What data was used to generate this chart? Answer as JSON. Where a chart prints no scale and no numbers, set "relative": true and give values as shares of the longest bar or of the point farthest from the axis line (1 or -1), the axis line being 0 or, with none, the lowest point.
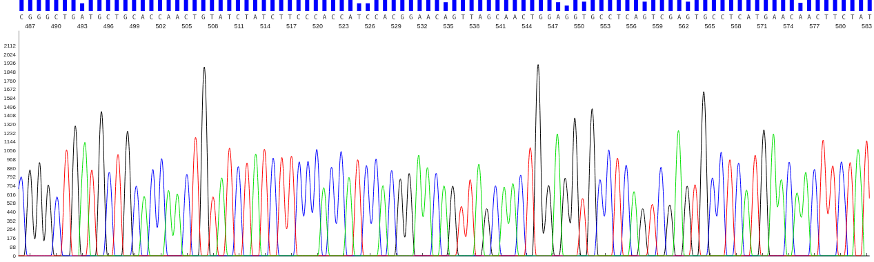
{
  "chart_data": [
    {
      "type": "bar",
      "relative": true,
      "color": "#0000ff",
      "categories": [
        "C",
        "G",
        "G",
        "G",
        "C",
        "T",
        "G",
        "A",
        "T",
        "G",
        "C",
        "T",
        "G",
        "C",
        "A",
        "C",
        "C",
        "A",
        "A",
        "C",
        "T",
        "G",
        "T",
        "A",
        "T",
        "C",
        "T",
        "A",
        "T",
        "C",
        "T",
        "T",
        "C",
        "C",
        "C",
        "A",
        "C",
        "C",
        "A",
        "T",
        "C",
        "C",
        "A",
        "C",
        "G",
        "G",
        "A",
        "A",
        "C",
        "A",
        "G",
        "T",
        "T",
        "A",
        "G",
        "C",
        "A",
        "A",
        "C",
        "T",
        "G",
        "G",
        "A",
        "G",
        "G",
        "T",
        "G",
        "C",
        "C",
        "T",
        "C",
        "A",
        "G",
        "T",
        "C",
        "G",
        "A",
        "G",
        "T",
        "G",
        "C",
        "C",
        "T",
        "C",
        "A",
        "T",
        "G",
        "A",
        "A",
        "C",
        "A",
        "A",
        "C",
        "T",
        "T",
        "C",
        "T",
        "A",
        "T"
      ],
      "values": [
        1,
        1,
        1,
        1,
        1,
        1,
        1,
        0.7,
        1,
        1,
        1,
        1,
        1,
        1,
        1,
        1,
        1,
        1,
        1,
        1,
        1,
        1,
        1,
        1,
        1,
        1,
        1,
        1,
        1,
        1,
        1,
        1,
        1,
        1,
        1,
        1,
        1,
        1,
        1,
        0.7,
        0.7,
        1,
        1,
        1,
        1,
        1,
        1,
        1,
        1,
        0.8,
        1,
        1,
        1,
        1,
        1,
        1,
        1,
        1,
        1,
        1,
        1,
        1,
        0.8,
        0.5,
        1,
        0.85,
        1,
        1,
        1,
        1,
        1,
        1,
        0.85,
        1,
        1,
        1,
        1,
        0.85,
        1,
        1,
        1,
        1,
        1,
        1,
        1,
        1,
        1,
        1,
        1,
        1,
        0.75,
        1,
        1,
        1,
        1,
        1,
        1,
        1,
        1
      ]
    },
    {
      "type": "line",
      "xlim": [
        485.7,
        583.3
      ],
      "xticks": [
        487,
        490,
        493,
        496,
        499,
        502,
        505,
        508,
        511,
        514,
        517,
        520,
        523,
        526,
        529,
        532,
        535,
        538,
        541,
        544,
        547,
        550,
        553,
        556,
        559,
        562,
        565,
        568,
        571,
        574,
        577,
        580,
        583
      ],
      "ylim": [
        0,
        2260
      ],
      "yticks": [
        0,
        88,
        176,
        264,
        352,
        440,
        528,
        616,
        704,
        792,
        880,
        968,
        1056,
        1144,
        1232,
        1320,
        1408,
        1496,
        1584,
        1672,
        1760,
        1848,
        1936,
        2024,
        2112
      ],
      "grid": false,
      "marker": "none",
      "line_style": "solid",
      "series": [
        {
          "color": "#000000",
          "x": [
            485.7,
            486.3,
            487.0,
            487.55,
            488.1,
            488.6,
            489.1,
            489.8,
            491.5,
            492.2,
            492.9,
            494.5,
            495.2,
            495.9,
            497.5,
            498.2,
            498.9,
            506.3,
            507.0,
            507.7,
            528.8,
            529.5,
            530.0,
            530.5,
            531.2,
            534.8,
            535.5,
            536.2,
            538.7,
            539.4,
            540.1,
            544.6,
            545.3,
            545.9,
            546.5,
            547.2,
            547.7,
            548.4,
            549.0,
            549.5,
            550.2,
            550.8,
            551.5,
            552.2,
            556.6,
            557.3,
            558.0,
            559.7,
            560.4,
            561.1,
            561.7,
            562.4,
            563.1,
            563.6,
            564.3,
            565.0,
            570.5,
            571.2,
            571.9,
            583.3
          ],
          "values": [
            0,
            0,
            865,
            168,
            938,
            150,
            713,
            0,
            0,
            1306,
            0,
            0,
            1451,
            0,
            0,
            1253,
            0,
            0,
            1898,
            0,
            0,
            773,
            186,
            828,
            0,
            0,
            701,
            0,
            0,
            474,
            0,
            0,
            1923,
            225,
            708,
            0,
            0,
            782,
            329,
            1387,
            0,
            0,
            1479,
            0,
            0,
            474,
            0,
            0,
            513,
            0,
            0,
            701,
            0,
            0,
            1651,
            0,
            0,
            1267,
            0,
            0
          ]
        },
        {
          "color": "#0000ff",
          "x": [
            485.7,
            486.0,
            486.7,
            489.4,
            490.1,
            490.8,
            495.4,
            496.1,
            496.8,
            498.5,
            499.2,
            499.9,
            500.4,
            501.1,
            501.6,
            502.1,
            502.8,
            504.3,
            505.0,
            505.7,
            510.2,
            510.9,
            511.6,
            514.2,
            514.9,
            515.6,
            517.2,
            517.9,
            518.4,
            518.9,
            519.4,
            519.9,
            520.6,
            520.9,
            521.6,
            522.15,
            522.7,
            523.4,
            524.9,
            525.6,
            526.15,
            526.7,
            527.4,
            527.8,
            528.5,
            529.2,
            532.9,
            533.6,
            534.3,
            539.7,
            540.4,
            541.1,
            542.6,
            543.3,
            544.0,
            551.7,
            552.4,
            552.9,
            553.4,
            554.1,
            554.7,
            555.4,
            556.1,
            558.7,
            559.4,
            560.1,
            564.6,
            565.3,
            565.8,
            566.3,
            567.0,
            567.6,
            568.3,
            569.0,
            573.4,
            574.1,
            574.8,
            576.3,
            577.0,
            577.7,
            579.4,
            580.1,
            580.8
          ],
          "values": [
            674,
            794,
            0,
            0,
            593,
            0,
            0,
            840,
            0,
            0,
            701,
            0,
            0,
            869,
            283,
            978,
            0,
            0,
            819,
            0,
            0,
            897,
            0,
            0,
            984,
            0,
            0,
            945,
            398,
            950,
            432,
            1070,
            0,
            0,
            892,
            322,
            1049,
            0,
            0,
            908,
            322,
            973,
            0,
            0,
            858,
            0,
            0,
            830,
            0,
            0,
            704,
            0,
            0,
            812,
            0,
            0,
            766,
            398,
            1065,
            0,
            0,
            911,
            0,
            0,
            892,
            0,
            0,
            784,
            398,
            1042,
            0,
            0,
            932,
            0,
            0,
            943,
            0,
            0,
            869,
            0,
            0,
            945,
            0
          ]
        },
        {
          "color": "#ff0000",
          "x": [
            485.7,
            490.5,
            491.2,
            491.9,
            493.4,
            494.1,
            494.8,
            496.4,
            497.1,
            497.8,
            505.3,
            506.0,
            506.7,
            507.3,
            508.0,
            508.7,
            509.2,
            509.9,
            510.6,
            511.2,
            511.9,
            512.6,
            513.2,
            513.9,
            514.6,
            515.2,
            515.9,
            516.45,
            517.0,
            517.7,
            523.9,
            524.6,
            525.3,
            535.8,
            536.5,
            537.0,
            537.5,
            538.2,
            543.7,
            544.4,
            545.1,
            549.7,
            550.4,
            551.1,
            553.7,
            554.4,
            555.1,
            557.7,
            558.4,
            559.1,
            562.6,
            563.3,
            564.0,
            566.6,
            567.3,
            568.0,
            569.5,
            570.2,
            570.9,
            577.3,
            578.0,
            578.55,
            579.1,
            579.8,
            580.4,
            581.1,
            581.8,
            582.3,
            583.0,
            583.3
          ],
          "values": [
            0,
            0,
            1065,
            0,
            0,
            862,
            0,
            0,
            1019,
            0,
            0,
            1191,
            0,
            0,
            593,
            0,
            0,
            1083,
            0,
            0,
            932,
            0,
            0,
            1072,
            0,
            0,
            989,
            271,
            1003,
            0,
            0,
            966,
            0,
            0,
            497,
            191,
            766,
            0,
            0,
            1088,
            0,
            0,
            577,
            0,
            0,
            984,
            0,
            0,
            518,
            0,
            0,
            715,
            0,
            0,
            966,
            0,
            0,
            1012,
            0,
            0,
            1164,
            421,
            904,
            0,
            0,
            938,
            0,
            0,
            1157,
            580
          ]
        },
        {
          "color": "#00e000",
          "x": [
            492.6,
            493.3,
            494.0,
            499.4,
            500.1,
            500.8,
            502.2,
            502.9,
            503.4,
            503.9,
            504.6,
            508.3,
            509.0,
            509.7,
            512.2,
            512.9,
            513.6,
            520.0,
            520.7,
            521.4,
            522.9,
            523.6,
            524.3,
            526.8,
            527.5,
            528.2,
            530.9,
            531.6,
            532.1,
            532.6,
            533.3,
            533.8,
            534.5,
            535.2,
            537.8,
            538.5,
            539.2,
            540.7,
            541.4,
            541.9,
            542.4,
            543.1,
            546.8,
            547.5,
            548.2,
            555.6,
            556.3,
            557.0,
            560.7,
            561.4,
            562.1,
            568.5,
            569.2,
            569.9,
            571.6,
            572.3,
            572.75,
            573.2,
            573.9,
            574.3,
            575.0,
            575.5,
            576.0,
            576.7,
            581.3,
            582.0,
            582.7
          ],
          "values": [
            0,
            1141,
            0,
            0,
            598,
            0,
            0,
            658,
            202,
            623,
            0,
            0,
            784,
            0,
            0,
            1024,
            0,
            0,
            685,
            0,
            0,
            789,
            0,
            0,
            706,
            0,
            0,
            1012,
            391,
            888,
            0,
            0,
            704,
            0,
            0,
            922,
            0,
            0,
            692,
            322,
            727,
            0,
            0,
            1226,
            0,
            0,
            646,
            0,
            0,
            1260,
            0,
            0,
            662,
            0,
            0,
            1226,
            490,
            766,
            0,
            0,
            633,
            386,
            840,
            0,
            0,
            1070,
            0
          ]
        }
      ]
    }
  ]
}
